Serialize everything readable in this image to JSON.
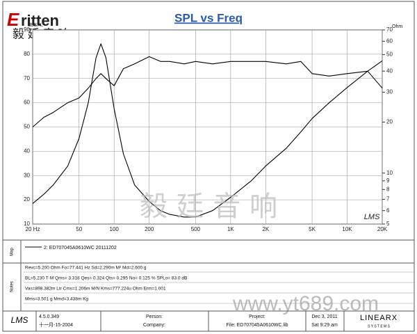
{
  "header": {
    "logo": "ritten",
    "logo_cn": "毅 廷 音 响"
  },
  "chart_data": {
    "type": "line",
    "title": "SPL vs Freq",
    "x_scale": "log",
    "y2_scale": "log",
    "grid": true,
    "y_label": "dBSPL",
    "y2_label": "Ohm",
    "xlim": [
      20,
      20000
    ],
    "xticks": [
      {
        "value": 20,
        "label": "20 Hz"
      },
      50,
      100,
      200,
      500,
      {
        "value": 1000,
        "label": "1K"
      },
      {
        "value": 2000,
        "label": "2K"
      },
      {
        "value": 5000,
        "label": "5K"
      },
      {
        "value": 10000,
        "label": "10K"
      },
      {
        "value": 20000,
        "label": "20K"
      }
    ],
    "ylim": [
      10,
      90
    ],
    "yticks": [
      10,
      20,
      30,
      40,
      50,
      60,
      70,
      80,
      90
    ],
    "y2lim": [
      5,
      70
    ],
    "y2ticks": [
      5,
      6,
      7,
      8,
      9,
      10,
      20,
      30,
      40,
      50,
      60,
      70
    ],
    "x": [
      20,
      25,
      30,
      40,
      50,
      60,
      70,
      77,
      85,
      100,
      120,
      150,
      200,
      250,
      300,
      400,
      500,
      700,
      1000,
      1500,
      2000,
      3000,
      4000,
      5000,
      7000,
      10000,
      15000,
      20000
    ],
    "series": [
      {
        "name": "2: ED707045A0610WC 20111202",
        "color": "#000000",
        "values": [
          50,
          54,
          56,
          60,
          62,
          66,
          70,
          72,
          70,
          67,
          74,
          76,
          79,
          77,
          77,
          76,
          77,
          76,
          77,
          77,
          77,
          76,
          77,
          72,
          71,
          72,
          73,
          66
        ]
      },
      {
        "axis": "y2",
        "color": "#000000",
        "values": [
          6.6,
          7.5,
          8.5,
          11,
          16,
          26,
          48,
          58,
          48,
          24,
          13,
          8.5,
          6.8,
          6.0,
          5.7,
          5.5,
          5.5,
          6.0,
          7.2,
          9.0,
          11,
          14,
          17.5,
          21,
          26,
          32,
          40,
          46
        ]
      }
    ],
    "plot_mark": "LMS"
  },
  "map_panel": {
    "label": "Map"
  },
  "notes": {
    "label": "Notes",
    "lines": [
      "Revc=5.200 Ohm  Fo=77.441 Hz  Sd=2.290m M²  Md=2.600 g",
      "BL=5.230 T·M  Qms= 3.318  Qes= 0.324  Qts= 0.295  No= 0.125 %  SPLo= 83.0 dB",
      "Vas=898.382m Ltr  Cms=1.206m M/N  Kms=777.224u Ohm  Erm=1.001",
      "Mms=3.501 g  Mmd=3.438m Kg"
    ]
  },
  "footer": {
    "app": "LMS",
    "version": "4.5.0.349",
    "build_date": "十一月-15-2004",
    "person": "Person:",
    "company": "Company:",
    "project": "Project:",
    "file": "File: ED707045A0610WC.lib",
    "date": "Dec 3, 2011",
    "time": "Sat  9:29 am",
    "brand": "LINEARX",
    "brand_sub": "S Y S T E M S"
  },
  "watermarks": [
    "毅 廷 音 响",
    "www.yt689.com"
  ]
}
